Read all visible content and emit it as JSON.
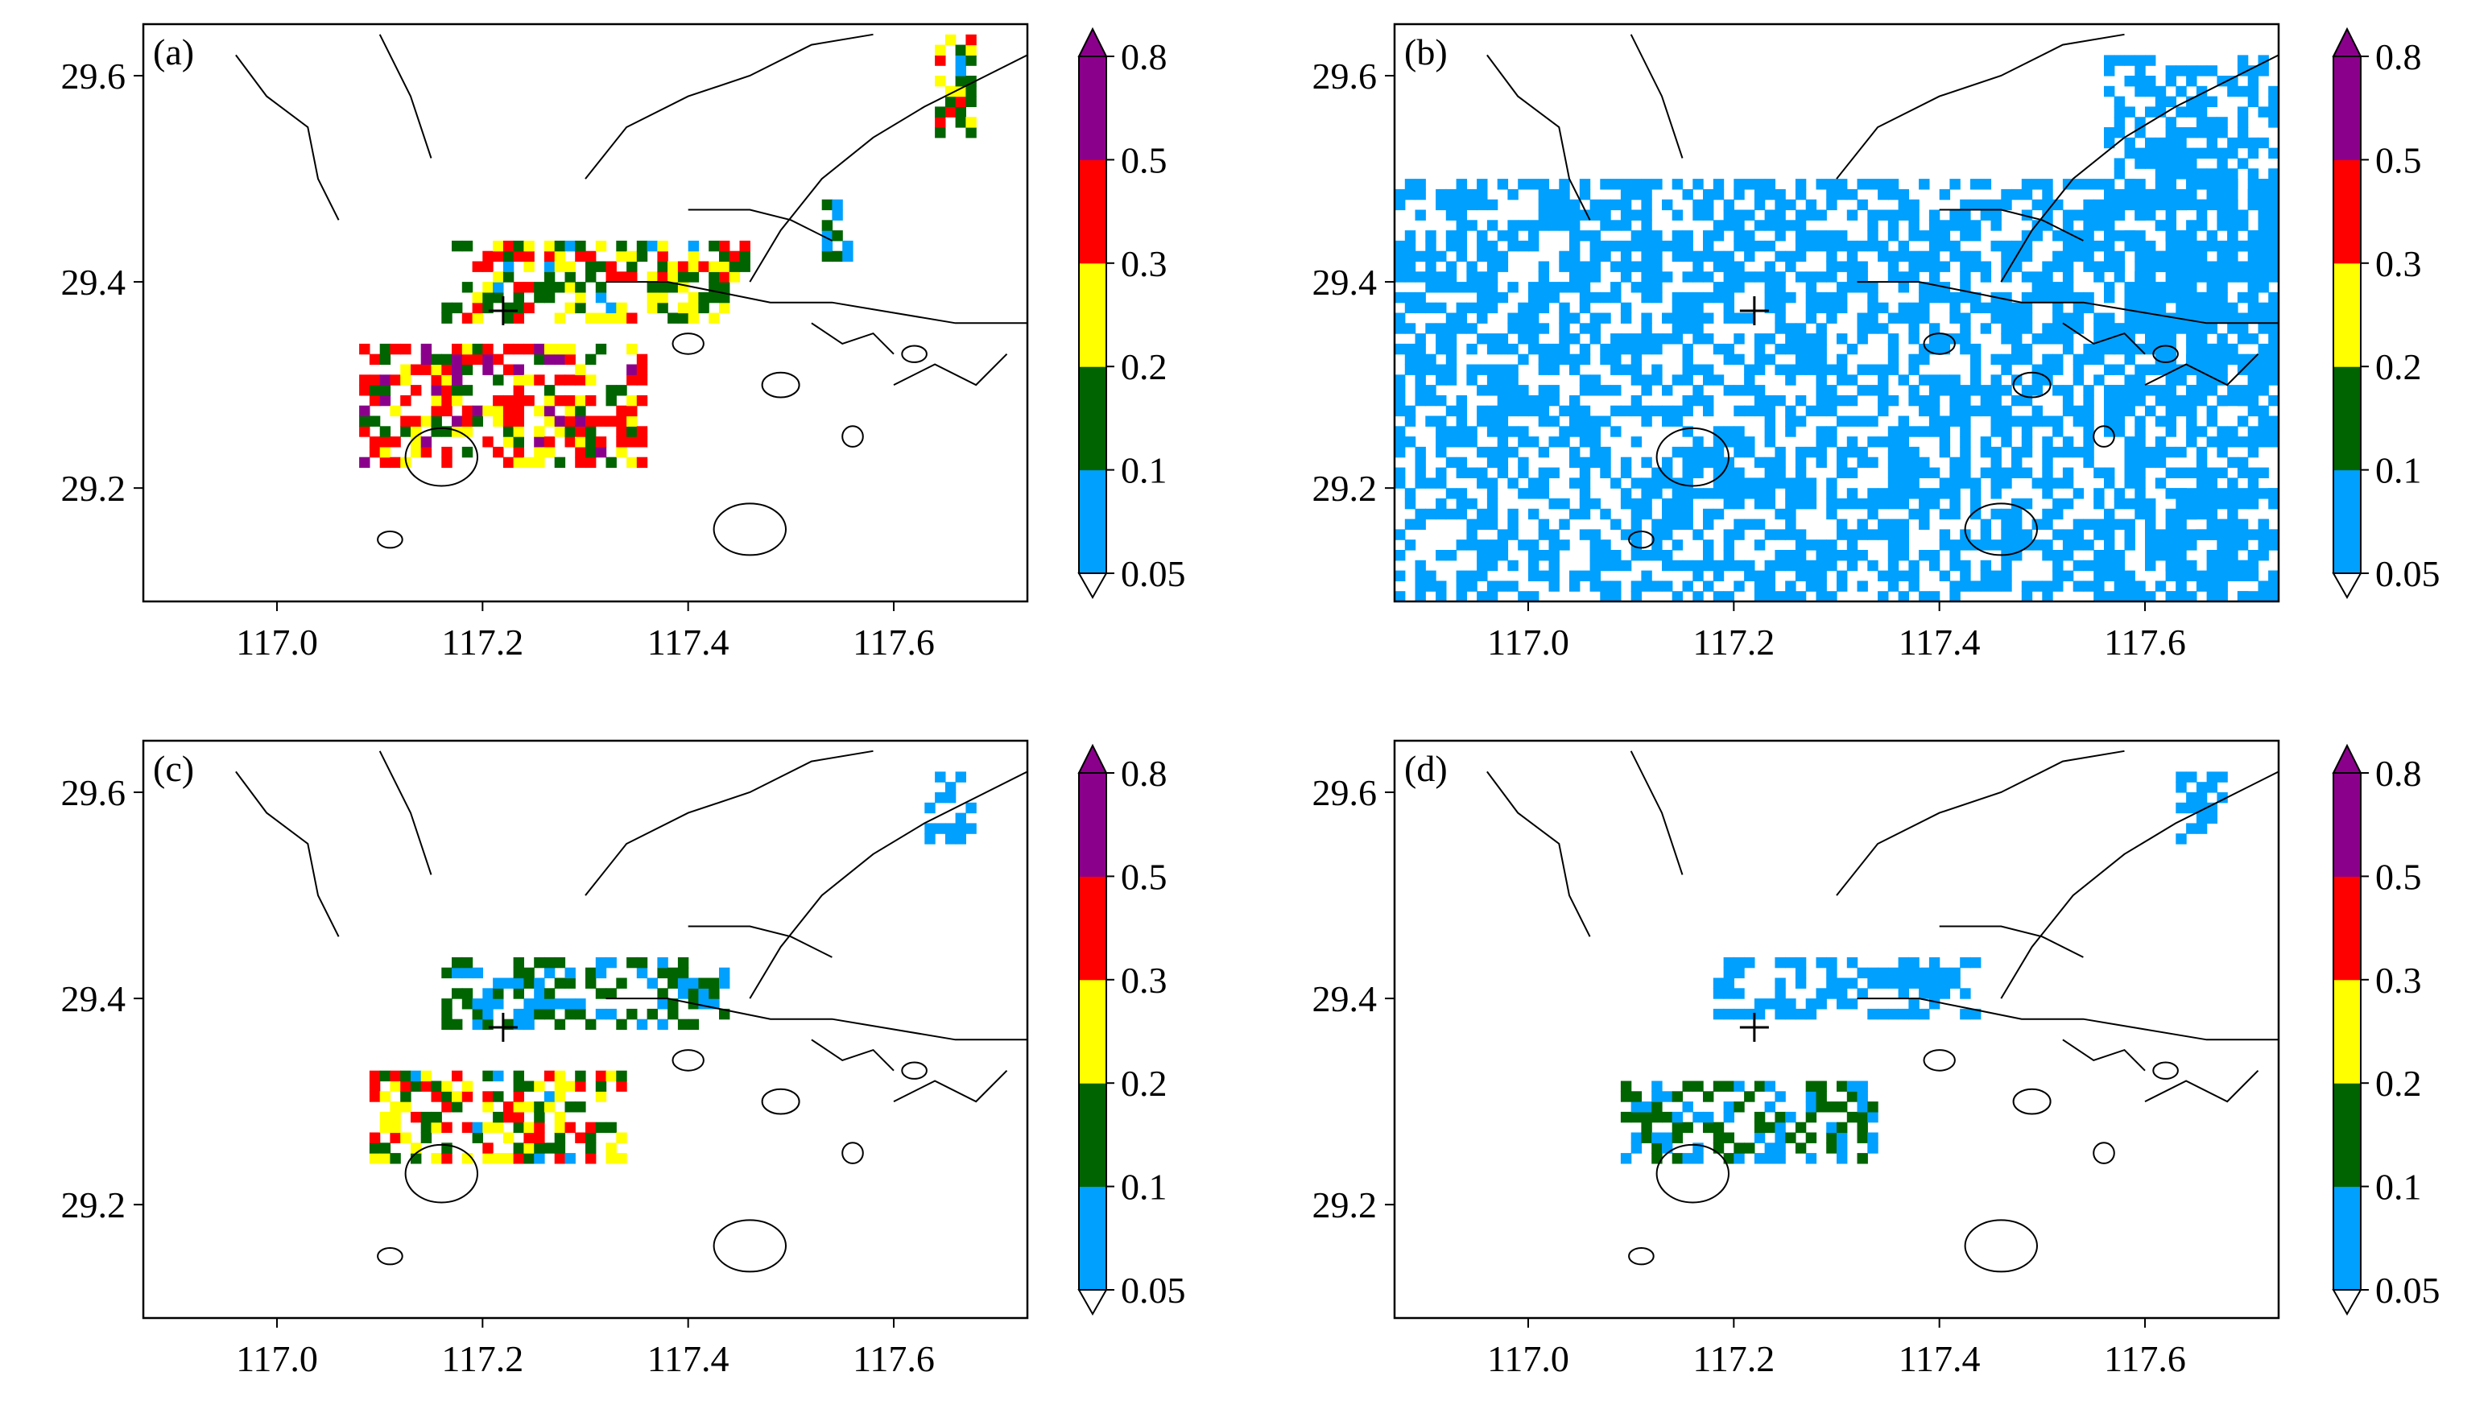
{
  "figure": {
    "type": "multi-panel map figure"
  },
  "colorbar": {
    "levels": [
      "0.05",
      "0.1",
      "0.2",
      "0.3",
      "0.5",
      "0.8"
    ],
    "colors": [
      "#00a0ff",
      "#006400",
      "#ffff00",
      "#ff0000",
      "#8b008b"
    ],
    "extend": "both",
    "under_color": "#ffffff",
    "over_color": "#8b008b"
  },
  "axes": {
    "x_ticks": [
      "117.0",
      "117.2",
      "117.4",
      "117.6"
    ],
    "x_tick_values": [
      117.0,
      117.2,
      117.4,
      117.6
    ],
    "y_ticks": [
      "29.2",
      "29.4",
      "29.6"
    ],
    "y_tick_values": [
      29.2,
      29.4,
      29.6
    ],
    "xlim": [
      116.87,
      117.73
    ],
    "ylim": [
      29.09,
      29.65
    ]
  },
  "marker": {
    "lon": 117.22,
    "lat": 29.372,
    "symbol": "+"
  },
  "chart_data": [
    {
      "type": "heatmap",
      "panel_label": "(a)",
      "xlim": [
        116.87,
        117.73
      ],
      "ylim": [
        29.09,
        29.65
      ],
      "clusters": [
        {
          "lon": [
            117.08,
            117.36
          ],
          "lat": [
            29.22,
            29.34
          ],
          "level": 0.3
        },
        {
          "lon": [
            117.16,
            117.46
          ],
          "lat": [
            29.36,
            29.44
          ],
          "level": 0.2
        },
        {
          "lon": [
            117.64,
            117.68
          ],
          "lat": [
            29.54,
            29.64
          ],
          "level": 0.2
        },
        {
          "lon": [
            117.53,
            117.56
          ],
          "lat": [
            29.42,
            29.48
          ],
          "level": 0.1
        }
      ]
    },
    {
      "type": "heatmap",
      "panel_label": "(b)",
      "xlim": [
        116.87,
        117.73
      ],
      "ylim": [
        29.09,
        29.65
      ],
      "clusters": [
        {
          "lon": [
            117.56,
            117.73
          ],
          "lat": [
            29.28,
            29.62
          ],
          "level": 0.05
        },
        {
          "lon": [
            117.62,
            117.73
          ],
          "lat": [
            29.09,
            29.2
          ],
          "level": 0.05
        },
        {
          "lon": [
            116.87,
            117.73
          ],
          "lat": [
            29.09,
            29.5
          ],
          "level": 0.05
        }
      ]
    },
    {
      "type": "heatmap",
      "panel_label": "(c)",
      "xlim": [
        116.87,
        117.73
      ],
      "ylim": [
        29.09,
        29.65
      ],
      "clusters": [
        {
          "lon": [
            117.09,
            117.34
          ],
          "lat": [
            29.24,
            29.33
          ],
          "level": 0.2
        },
        {
          "lon": [
            117.16,
            117.44
          ],
          "lat": [
            29.37,
            29.44
          ],
          "level": 0.1
        },
        {
          "lon": [
            117.63,
            117.68
          ],
          "lat": [
            29.55,
            29.62
          ],
          "level": 0.05
        }
      ]
    },
    {
      "type": "heatmap",
      "panel_label": "(d)",
      "xlim": [
        116.87,
        117.73
      ],
      "ylim": [
        29.09,
        29.65
      ],
      "clusters": [
        {
          "lon": [
            117.09,
            117.34
          ],
          "lat": [
            29.24,
            29.32
          ],
          "level": 0.1
        },
        {
          "lon": [
            117.18,
            117.44
          ],
          "lat": [
            29.38,
            29.44
          ],
          "level": 0.05
        },
        {
          "lon": [
            117.63,
            117.68
          ],
          "lat": [
            29.55,
            29.62
          ],
          "level": 0.05
        }
      ]
    }
  ]
}
